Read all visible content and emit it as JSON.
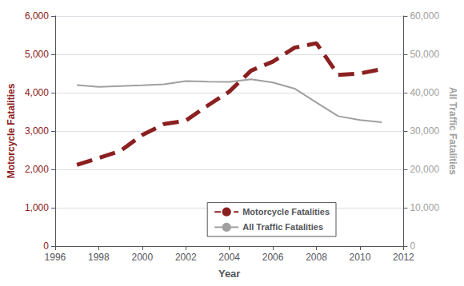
{
  "chart_data": {
    "type": "line",
    "xlabel": "Year",
    "ylabel": "Motorcycle Fatalities",
    "y2label": "All Traffic Fatalities",
    "x": [
      1997,
      1998,
      1999,
      2000,
      2001,
      2002,
      2003,
      2004,
      2005,
      2006,
      2007,
      2008,
      2009,
      2010,
      2011
    ],
    "series": [
      {
        "name": "Motorcycle Fatalities",
        "color": "#8B2020",
        "line_style": "dashed",
        "values": [
          2116,
          2294,
          2483,
          2897,
          3181,
          3270,
          3661,
          4028,
          4576,
          4810,
          5174,
          5290,
          4462,
          4502,
          4612
        ]
      },
      {
        "name": "All Traffic Fatalities",
        "color": "#A0A0A0",
        "line_style": "solid",
        "axis": "y2",
        "values": [
          41967,
          41501,
          41717,
          41945,
          42196,
          43005,
          42884,
          42836,
          43510,
          42642,
          41059,
          37423,
          33883,
          32885,
          32310
        ]
      }
    ],
    "xlim": [
      1996,
      2012
    ],
    "xticks": [
      1996,
      1998,
      2000,
      2002,
      2004,
      2006,
      2008,
      2010,
      2012
    ],
    "ylim": [
      0,
      6000
    ],
    "yticks": [
      0,
      {
        "value": 1000,
        "label": "1,000"
      },
      {
        "value": 2000,
        "label": "2,000"
      },
      {
        "value": 3000,
        "label": "3,000"
      },
      {
        "value": 4000,
        "label": "4,000"
      },
      {
        "value": 5000,
        "label": "5,000"
      },
      {
        "value": 6000,
        "label": "6,000"
      }
    ],
    "y2lim": [
      0,
      60000
    ],
    "y2ticks": [
      0,
      {
        "value": 10000,
        "label": "10,000"
      },
      {
        "value": 20000,
        "label": "20,000"
      },
      {
        "value": 30000,
        "label": "30,000"
      },
      {
        "value": 40000,
        "label": "40,000"
      },
      {
        "value": 50000,
        "label": "50,000"
      },
      {
        "value": 60000,
        "label": "60,000"
      }
    ],
    "grid": true,
    "legend": "lower right"
  }
}
